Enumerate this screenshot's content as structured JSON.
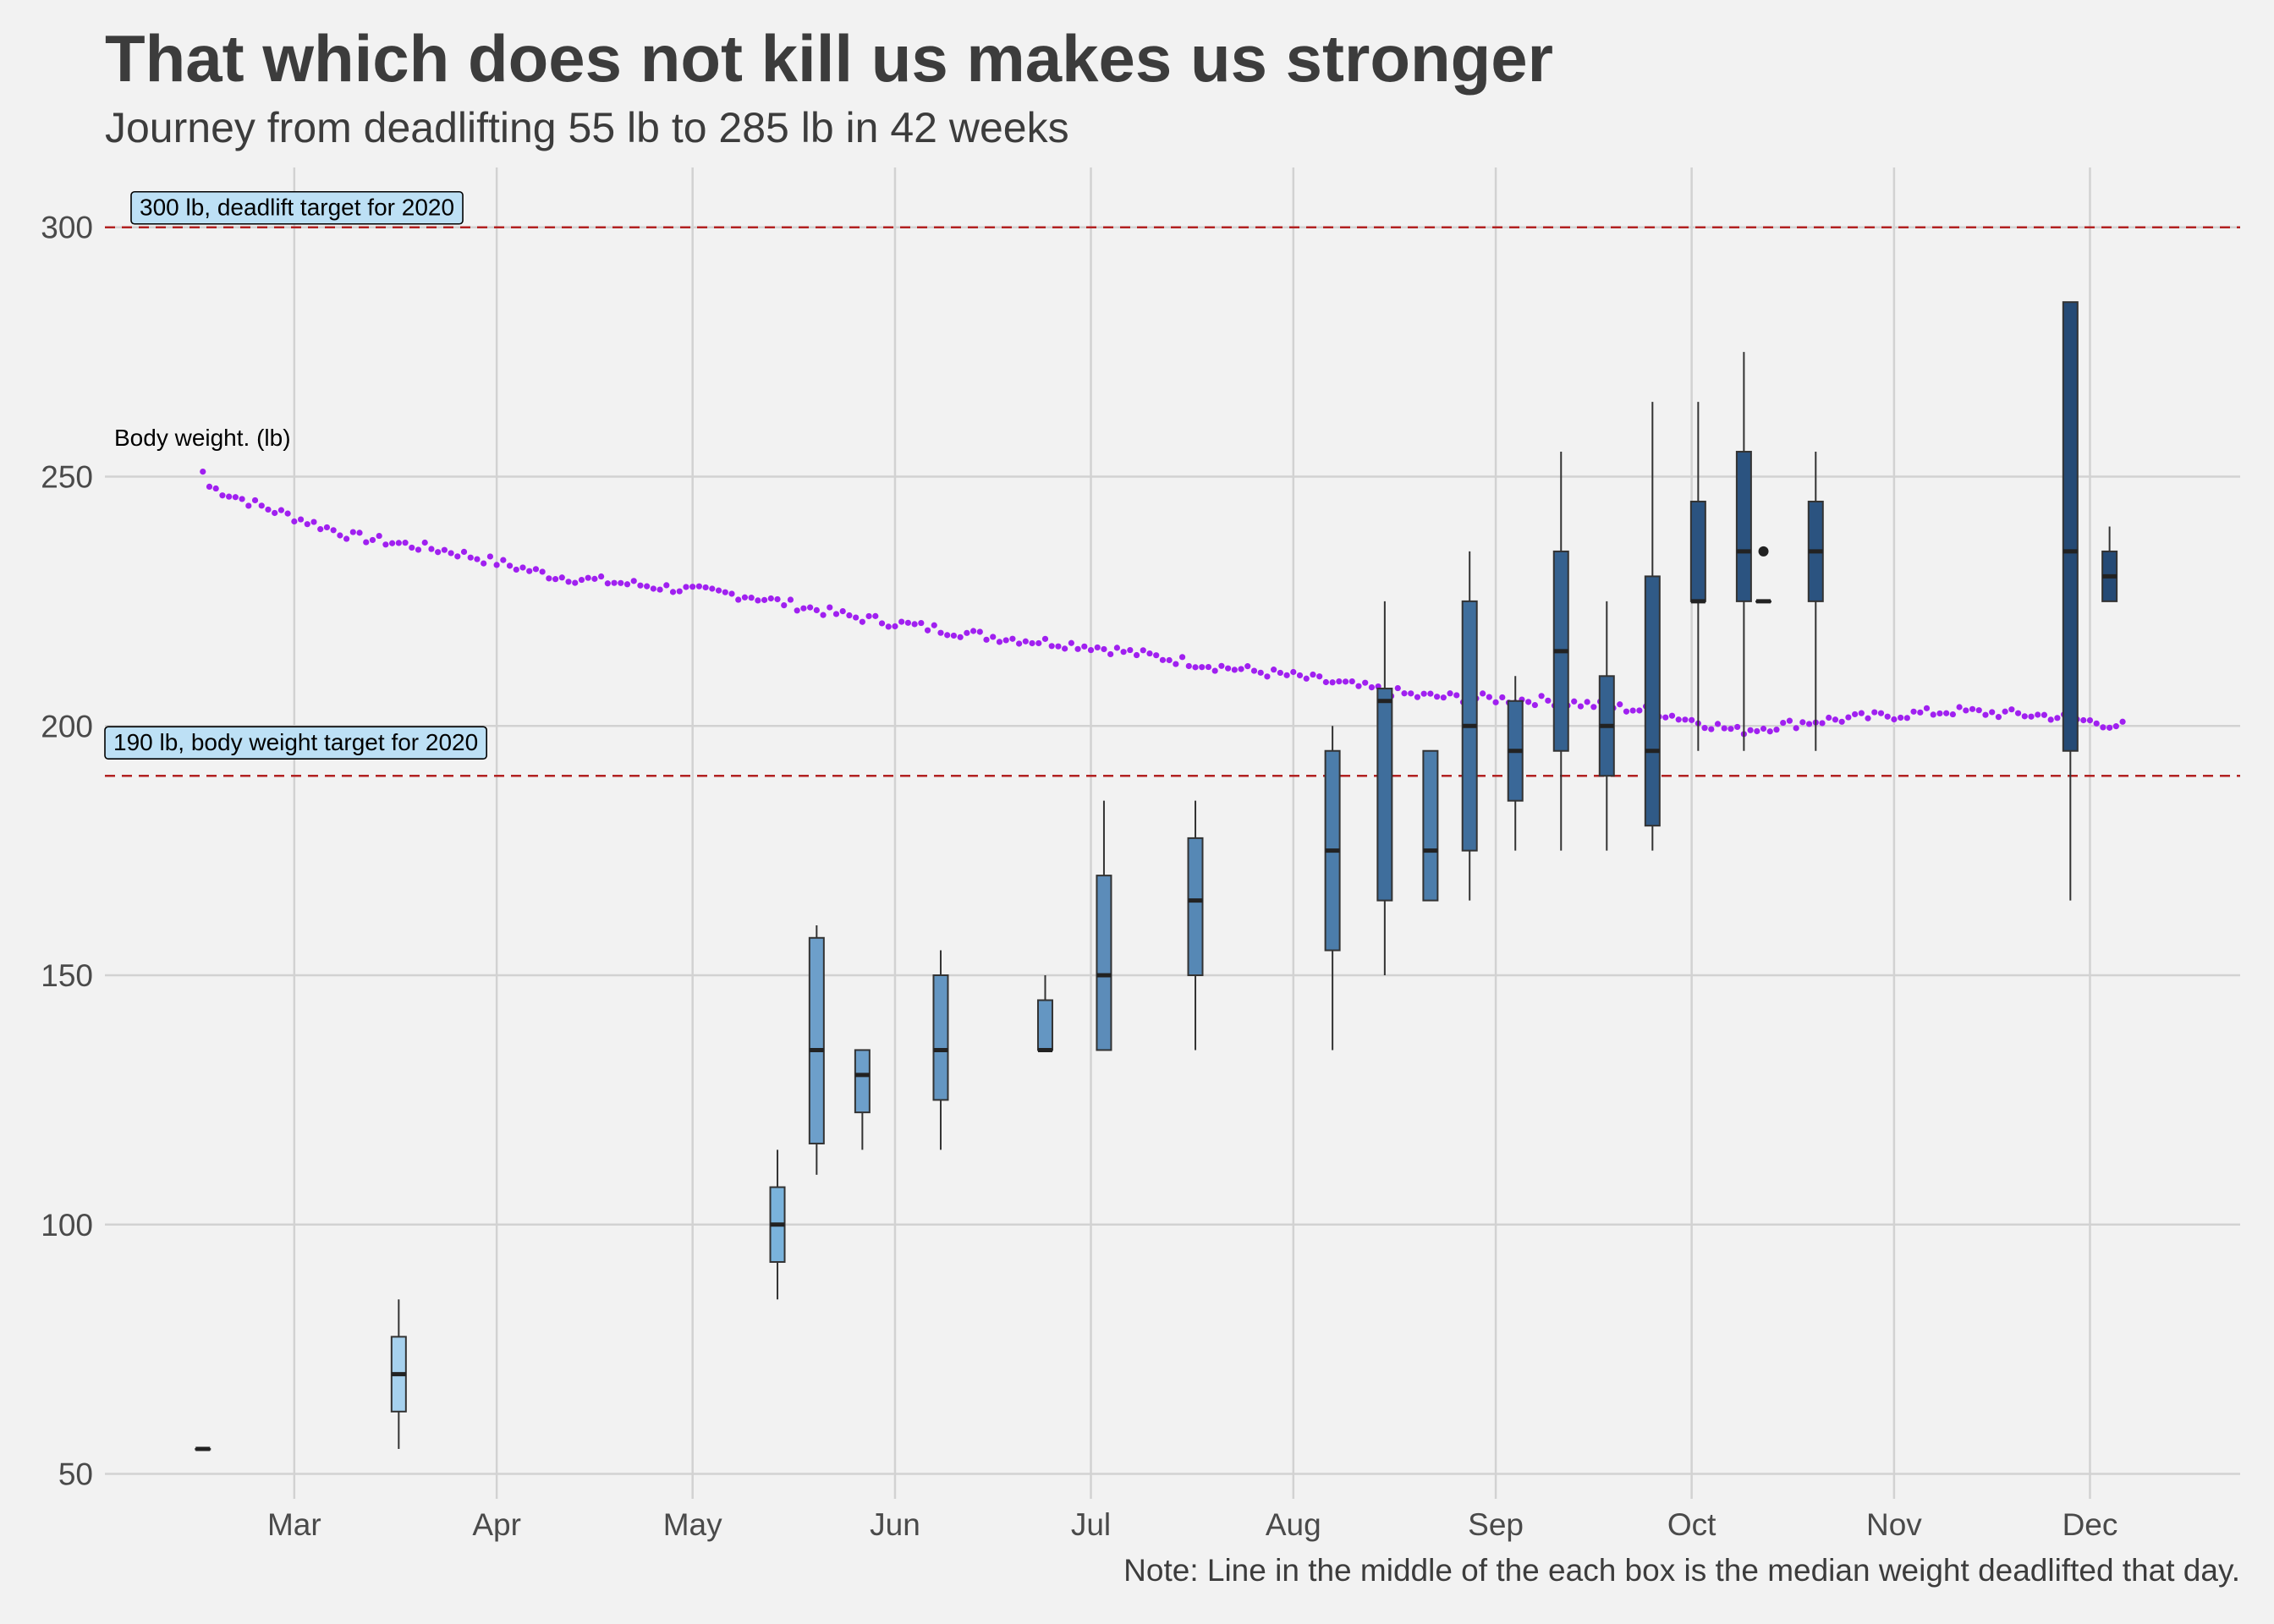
{
  "chart_data": {
    "type": "box",
    "title": "That which does not kill us makes us stronger",
    "subtitle": "Journey from deadlifting 55 lb to 285 lb in 42 weeks",
    "note": "Note: Line in the middle of the each box is the median weight deadlifted that day.",
    "ylim": [
      45,
      312
    ],
    "y_ticks": [
      50,
      100,
      150,
      200,
      250,
      300
    ],
    "x_range": [
      "2020-02-01",
      "2020-12-24"
    ],
    "x_ticks": [
      {
        "date": "2020-03-01",
        "label": "Mar"
      },
      {
        "date": "2020-04-01",
        "label": "Apr"
      },
      {
        "date": "2020-05-01",
        "label": "May"
      },
      {
        "date": "2020-06-01",
        "label": "Jun"
      },
      {
        "date": "2020-07-01",
        "label": "Jul"
      },
      {
        "date": "2020-08-01",
        "label": "Aug"
      },
      {
        "date": "2020-09-01",
        "label": "Sep"
      },
      {
        "date": "2020-10-01",
        "label": "Oct"
      },
      {
        "date": "2020-11-01",
        "label": "Nov"
      },
      {
        "date": "2020-12-01",
        "label": "Dec"
      }
    ],
    "grid": true,
    "reference_lines": [
      {
        "y": 300,
        "label": "300 lb, deadlift target for 2020",
        "color": "#b22222",
        "style": "dashed"
      },
      {
        "y": 190,
        "label": "190 lb, body weight target for 2020",
        "color": "#b22222",
        "style": "dashed"
      }
    ],
    "body_weight_label": "Body weight. (lb)",
    "body_weight_color": "#a020f0",
    "body_weight_keypoints": [
      {
        "date": "2020-02-16",
        "lb": 251
      },
      {
        "date": "2020-02-17",
        "lb": 248
      },
      {
        "date": "2020-02-25",
        "lb": 244
      },
      {
        "date": "2020-03-10",
        "lb": 238
      },
      {
        "date": "2020-03-25",
        "lb": 235
      },
      {
        "date": "2020-04-10",
        "lb": 230
      },
      {
        "date": "2020-04-25",
        "lb": 228
      },
      {
        "date": "2020-05-10",
        "lb": 226
      },
      {
        "date": "2020-05-25",
        "lb": 222
      },
      {
        "date": "2020-06-15",
        "lb": 218
      },
      {
        "date": "2020-07-01",
        "lb": 216
      },
      {
        "date": "2020-07-20",
        "lb": 212
      },
      {
        "date": "2020-08-01",
        "lb": 210
      },
      {
        "date": "2020-08-20",
        "lb": 206
      },
      {
        "date": "2020-09-10",
        "lb": 205
      },
      {
        "date": "2020-09-25",
        "lb": 203
      },
      {
        "date": "2020-10-08",
        "lb": 199
      },
      {
        "date": "2020-10-20",
        "lb": 201
      },
      {
        "date": "2020-11-10",
        "lb": 203
      },
      {
        "date": "2020-11-25",
        "lb": 202
      },
      {
        "date": "2020-12-06",
        "lb": 200
      }
    ],
    "boxes": [
      {
        "date": "2020-02-16",
        "min": 55,
        "q1": 55,
        "median": 55,
        "q3": 55,
        "max": 55,
        "color": "#a6d1ee"
      },
      {
        "date": "2020-03-17",
        "min": 55,
        "q1": 62.5,
        "median": 70,
        "q3": 77.5,
        "max": 85,
        "color": "#a6d1ee"
      },
      {
        "date": "2020-05-14",
        "min": 85,
        "q1": 92.5,
        "median": 100,
        "q3": 107.5,
        "max": 115,
        "color": "#7ab3dc"
      },
      {
        "date": "2020-05-20",
        "min": 110,
        "q1": 116.25,
        "median": 135,
        "q3": 157.5,
        "max": 160,
        "color": "#6d9fca"
      },
      {
        "date": "2020-05-27",
        "min": 115,
        "q1": 122.5,
        "median": 130,
        "q3": 135,
        "max": 135,
        "color": "#6d9fca"
      },
      {
        "date": "2020-06-08",
        "min": 115,
        "q1": 125,
        "median": 135,
        "q3": 150,
        "max": 155,
        "color": "#6496c2"
      },
      {
        "date": "2020-06-24",
        "min": 135,
        "q1": 135,
        "median": 135,
        "q3": 145,
        "max": 150,
        "color": "#6496c2"
      },
      {
        "date": "2020-07-03",
        "min": 135,
        "q1": 135,
        "median": 150,
        "q3": 170,
        "max": 185,
        "color": "#5c8cb9"
      },
      {
        "date": "2020-07-17",
        "min": 135,
        "q1": 150,
        "median": 165,
        "q3": 177.5,
        "max": 185,
        "color": "#5688b5"
      },
      {
        "date": "2020-08-07",
        "min": 135,
        "q1": 155,
        "median": 175,
        "q3": 195,
        "max": 200,
        "color": "#4c7dab"
      },
      {
        "date": "2020-08-15",
        "min": 150,
        "q1": 165,
        "median": 205,
        "q3": 207.5,
        "max": 225,
        "color": "#3f6e9c"
      },
      {
        "date": "2020-08-22",
        "min": 165,
        "q1": 165,
        "median": 175,
        "q3": 195,
        "max": 195,
        "color": "#4c7dab"
      },
      {
        "date": "2020-08-28",
        "min": 165,
        "q1": 175,
        "median": 200,
        "q3": 225,
        "max": 235,
        "color": "#3f6e9c"
      },
      {
        "date": "2020-09-04",
        "min": 175,
        "q1": 185,
        "median": 195,
        "q3": 205,
        "max": 210,
        "color": "#3a6898"
      },
      {
        "date": "2020-09-11",
        "min": 175,
        "q1": 195,
        "median": 215,
        "q3": 235,
        "max": 255,
        "color": "#35618f"
      },
      {
        "date": "2020-09-18",
        "min": 175,
        "q1": 190,
        "median": 200,
        "q3": 210,
        "max": 225,
        "color": "#35618f"
      },
      {
        "date": "2020-09-25",
        "min": 175,
        "q1": 180,
        "median": 195,
        "q3": 230,
        "max": 265,
        "color": "#305a87"
      },
      {
        "date": "2020-10-02",
        "min": 195,
        "q1": 225,
        "median": 225,
        "q3": 245,
        "max": 265,
        "color": "#2b5380"
      },
      {
        "date": "2020-10-09",
        "min": 195,
        "q1": 225,
        "median": 235,
        "q3": 255,
        "max": 275,
        "color": "#2b5380"
      },
      {
        "date": "2020-10-12",
        "min": 225,
        "q1": 225,
        "median": 225,
        "q3": 225,
        "max": 225,
        "color": "#2b5380",
        "outliers": [
          235
        ]
      },
      {
        "date": "2020-10-20",
        "min": 195,
        "q1": 225,
        "median": 235,
        "q3": 245,
        "max": 255,
        "color": "#2b5380"
      },
      {
        "date": "2020-11-28",
        "min": 165,
        "q1": 195,
        "median": 235,
        "q3": 285,
        "max": 285,
        "color": "#254a75"
      },
      {
        "date": "2020-12-04",
        "min": 225,
        "q1": 225,
        "median": 230,
        "q3": 235,
        "max": 240,
        "color": "#254a75"
      }
    ]
  }
}
